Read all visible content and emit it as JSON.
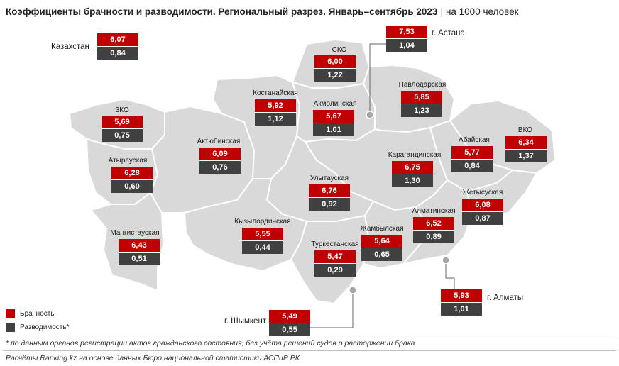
{
  "title": {
    "main": "Коэффициенты брачности и разводимости. Региональный разрез. Январь–сентябрь 2023",
    "unit": "на 1000 человек"
  },
  "colors": {
    "marriage": "#c00000",
    "divorce": "#404040",
    "map_fill": "#d9d9d9"
  },
  "country": {
    "name": "Казахстан",
    "marriage": "6,07",
    "divorce": "0,84"
  },
  "regions": [
    {
      "id": "zko",
      "name": "ЗКО",
      "marriage": "5,69",
      "divorce": "0,75"
    },
    {
      "id": "atyrau",
      "name": "Атырауская",
      "marriage": "6,28",
      "divorce": "0,60"
    },
    {
      "id": "mangystau",
      "name": "Мангистауская",
      "marriage": "6,43",
      "divorce": "0,51"
    },
    {
      "id": "aktobe",
      "name": "Актюбинская",
      "marriage": "6,09",
      "divorce": "0,76"
    },
    {
      "id": "kostanay",
      "name": "Костанайская",
      "marriage": "5,92",
      "divorce": "1,12"
    },
    {
      "id": "sko",
      "name": "СКО",
      "marriage": "6,00",
      "divorce": "1,22"
    },
    {
      "id": "akmola",
      "name": "Акмолинская",
      "marriage": "5,67",
      "divorce": "1,01"
    },
    {
      "id": "pavlodar",
      "name": "Павлодарская",
      "marriage": "5,85",
      "divorce": "1,23"
    },
    {
      "id": "vko",
      "name": "ВКО",
      "marriage": "6,34",
      "divorce": "1,37"
    },
    {
      "id": "abay",
      "name": "Абайская",
      "marriage": "5,77",
      "divorce": "0,84"
    },
    {
      "id": "karaganda",
      "name": "Карагандинская",
      "marriage": "6,75",
      "divorce": "1,30"
    },
    {
      "id": "ulytau",
      "name": "Улытауская",
      "marriage": "6,76",
      "divorce": "0,92"
    },
    {
      "id": "kyzylorda",
      "name": "Кызылординская",
      "marriage": "5,55",
      "divorce": "0,44"
    },
    {
      "id": "turkestan",
      "name": "Туркестанская",
      "marriage": "5,47",
      "divorce": "0,29"
    },
    {
      "id": "zhambyl",
      "name": "Жамбылская",
      "marriage": "5,64",
      "divorce": "0,65"
    },
    {
      "id": "almaty_obl",
      "name": "Алматинская",
      "marriage": "6,52",
      "divorce": "0,89"
    },
    {
      "id": "zhetysu",
      "name": "Жетысуская",
      "marriage": "6,08",
      "divorce": "0,87"
    }
  ],
  "cities": [
    {
      "id": "astana",
      "name": "г. Астана",
      "marriage": "7,53",
      "divorce": "1,04"
    },
    {
      "id": "almaty",
      "name": "г. Алматы",
      "marriage": "5,93",
      "divorce": "1,01"
    },
    {
      "id": "shymkent",
      "name": "г. Шымкент",
      "marriage": "5,49",
      "divorce": "0,55"
    }
  ],
  "legend": {
    "marriage": "Брачность",
    "divorce": "Разводимость*"
  },
  "footnote": "* по данным органов регистрации актов гражданского состояния, без учёта решений судов о расторжении брака",
  "source": "Расчёты Ranking.kz на основе данных Бюро национальной статистики АСПиР РК"
}
